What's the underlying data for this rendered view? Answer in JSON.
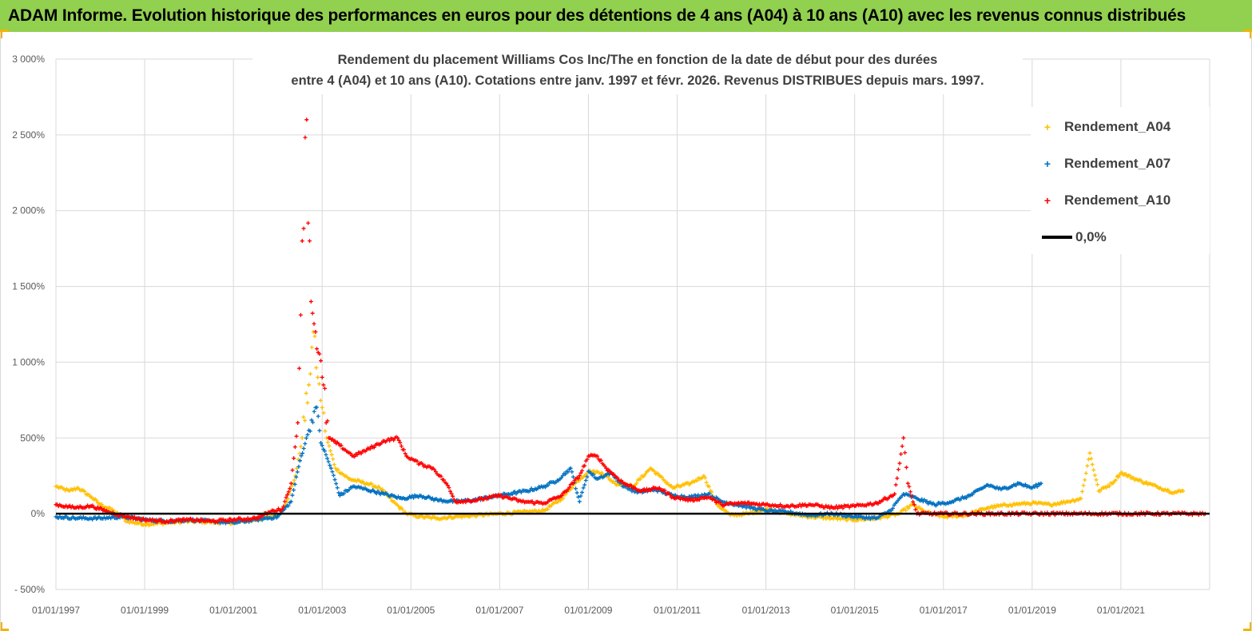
{
  "banner": {
    "title": "ADAM Informe. Evolution historique des performances en euros pour des détentions de 4 ans (A04) à 10 ans (A10) avec les revenus connus distribués"
  },
  "chart_data": {
    "type": "scatter",
    "title_line1": "Rendement du placement Williams Cos Inc/The  en fonction de la date de début pour des durées",
    "title_line2": "entre 4  (A04) et 10 ans (A10).  Cotations entre janv. 1997 et févr. 2026. Revenus  DISTRIBUES depuis mars. 1997.",
    "x_ticks": [
      "01/01/1997",
      "01/01/1999",
      "01/01/2001",
      "01/01/2003",
      "01/01/2005",
      "01/01/2007",
      "01/01/2009",
      "01/01/2011",
      "01/01/2013",
      "01/01/2015",
      "01/01/2017",
      "01/01/2019",
      "01/01/2021"
    ],
    "xlim": [
      1997.0,
      2023.0
    ],
    "y_ticks": [
      "3 000%",
      "2 500%",
      "2 000%",
      "1 500%",
      "1 000%",
      "500%",
      "0%",
      "- 500%"
    ],
    "ylim": [
      -500,
      3000
    ],
    "grid": true,
    "legend_position": "top-right",
    "series": [
      {
        "name": "Rendement_A04",
        "color": "#ffc000",
        "marker": "+",
        "points": [
          [
            1997.0,
            180
          ],
          [
            1997.3,
            150
          ],
          [
            1997.5,
            170
          ],
          [
            1997.8,
            110
          ],
          [
            1998.0,
            60
          ],
          [
            1998.3,
            20
          ],
          [
            1998.6,
            -50
          ],
          [
            1999.0,
            -70
          ],
          [
            1999.5,
            -60
          ],
          [
            2000.0,
            -50
          ],
          [
            2000.5,
            -55
          ],
          [
            2001.0,
            -60
          ],
          [
            2001.5,
            -40
          ],
          [
            2002.0,
            -10
          ],
          [
            2002.2,
            80
          ],
          [
            2002.4,
            250
          ],
          [
            2002.55,
            500
          ],
          [
            2002.7,
            850
          ],
          [
            2002.8,
            1200
          ],
          [
            2002.9,
            900
          ],
          [
            2003.0,
            700
          ],
          [
            2003.1,
            500
          ],
          [
            2003.3,
            300
          ],
          [
            2003.6,
            230
          ],
          [
            2004.0,
            200
          ],
          [
            2004.3,
            170
          ],
          [
            2004.6,
            80
          ],
          [
            2004.9,
            0
          ],
          [
            2005.2,
            -20
          ],
          [
            2005.6,
            -30
          ],
          [
            2006.0,
            -20
          ],
          [
            2006.5,
            -10
          ],
          [
            2007.0,
            0
          ],
          [
            2007.5,
            10
          ],
          [
            2008.0,
            20
          ],
          [
            2008.4,
            100
          ],
          [
            2008.7,
            200
          ],
          [
            2009.0,
            280
          ],
          [
            2009.3,
            270
          ],
          [
            2009.6,
            200
          ],
          [
            2010.0,
            180
          ],
          [
            2010.4,
            300
          ],
          [
            2010.6,
            250
          ],
          [
            2010.9,
            170
          ],
          [
            2011.3,
            200
          ],
          [
            2011.6,
            250
          ],
          [
            2011.9,
            60
          ],
          [
            2012.2,
            -10
          ],
          [
            2012.6,
            0
          ],
          [
            2013.0,
            30
          ],
          [
            2013.5,
            0
          ],
          [
            2014.0,
            -20
          ],
          [
            2014.5,
            -30
          ],
          [
            2015.0,
            -40
          ],
          [
            2015.5,
            -30
          ],
          [
            2016.0,
            0
          ],
          [
            2016.3,
            60
          ],
          [
            2016.6,
            10
          ],
          [
            2017.0,
            -20
          ],
          [
            2017.5,
            -10
          ],
          [
            2018.0,
            40
          ],
          [
            2018.5,
            60
          ],
          [
            2019.0,
            70
          ],
          [
            2019.4,
            60
          ],
          [
            2019.8,
            80
          ],
          [
            2020.1,
            100
          ],
          [
            2020.3,
            400
          ],
          [
            2020.5,
            150
          ],
          [
            2020.8,
            200
          ],
          [
            2021.0,
            270
          ],
          [
            2021.4,
            220
          ],
          [
            2021.8,
            180
          ],
          [
            2022.2,
            140
          ],
          [
            2022.4,
            150
          ]
        ]
      },
      {
        "name": "Rendement_A07",
        "color": "#0070c0",
        "marker": "+",
        "points": [
          [
            1997.0,
            -20
          ],
          [
            1997.5,
            -30
          ],
          [
            1998.0,
            -30
          ],
          [
            1998.5,
            -20
          ],
          [
            1999.0,
            -40
          ],
          [
            1999.5,
            -50
          ],
          [
            2000.0,
            -40
          ],
          [
            2000.5,
            -50
          ],
          [
            2001.0,
            -60
          ],
          [
            2001.5,
            -40
          ],
          [
            2002.0,
            -20
          ],
          [
            2002.3,
            80
          ],
          [
            2002.5,
            350
          ],
          [
            2002.7,
            550
          ],
          [
            2002.85,
            700
          ],
          [
            2003.0,
            450
          ],
          [
            2003.2,
            300
          ],
          [
            2003.4,
            120
          ],
          [
            2003.7,
            180
          ],
          [
            2004.0,
            160
          ],
          [
            2004.4,
            130
          ],
          [
            2004.8,
            100
          ],
          [
            2005.2,
            120
          ],
          [
            2005.6,
            90
          ],
          [
            2006.0,
            80
          ],
          [
            2006.4,
            90
          ],
          [
            2006.8,
            110
          ],
          [
            2007.2,
            130
          ],
          [
            2007.6,
            150
          ],
          [
            2008.0,
            180
          ],
          [
            2008.3,
            220
          ],
          [
            2008.6,
            300
          ],
          [
            2008.8,
            80
          ],
          [
            2009.0,
            280
          ],
          [
            2009.2,
            230
          ],
          [
            2009.5,
            270
          ],
          [
            2009.8,
            180
          ],
          [
            2010.1,
            140
          ],
          [
            2010.5,
            160
          ],
          [
            2010.9,
            120
          ],
          [
            2011.3,
            110
          ],
          [
            2011.7,
            130
          ],
          [
            2012.0,
            80
          ],
          [
            2012.5,
            50
          ],
          [
            2013.0,
            20
          ],
          [
            2013.5,
            10
          ],
          [
            2014.0,
            -10
          ],
          [
            2014.5,
            0
          ],
          [
            2015.0,
            -20
          ],
          [
            2015.5,
            -30
          ],
          [
            2015.8,
            20
          ],
          [
            2016.1,
            130
          ],
          [
            2016.4,
            100
          ],
          [
            2016.8,
            60
          ],
          [
            2017.2,
            80
          ],
          [
            2017.6,
            120
          ],
          [
            2018.0,
            190
          ],
          [
            2018.3,
            160
          ],
          [
            2018.7,
            200
          ],
          [
            2019.0,
            170
          ],
          [
            2019.2,
            200
          ]
        ]
      },
      {
        "name": "Rendement_A10",
        "color": "#ff0000",
        "marker": "+",
        "points": [
          [
            1997.0,
            60
          ],
          [
            1997.4,
            40
          ],
          [
            1997.8,
            50
          ],
          [
            1998.2,
            10
          ],
          [
            1998.6,
            -20
          ],
          [
            1999.0,
            -40
          ],
          [
            1999.5,
            -50
          ],
          [
            2000.0,
            -40
          ],
          [
            2000.5,
            -50
          ],
          [
            2001.0,
            -40
          ],
          [
            2001.5,
            -30
          ],
          [
            2001.9,
            20
          ],
          [
            2002.1,
            30
          ],
          [
            2002.3,
            200
          ],
          [
            2002.45,
            600
          ],
          [
            2002.55,
            1800
          ],
          [
            2002.65,
            2600
          ],
          [
            2002.75,
            1400
          ],
          [
            2002.85,
            1200
          ],
          [
            2003.0,
            900
          ],
          [
            2003.15,
            500
          ],
          [
            2003.4,
            450
          ],
          [
            2003.7,
            380
          ],
          [
            2004.0,
            420
          ],
          [
            2004.4,
            480
          ],
          [
            2004.7,
            500
          ],
          [
            2004.9,
            380
          ],
          [
            2005.2,
            330
          ],
          [
            2005.5,
            300
          ],
          [
            2005.8,
            200
          ],
          [
            2006.0,
            80
          ],
          [
            2006.5,
            90
          ],
          [
            2007.0,
            120
          ],
          [
            2007.5,
            80
          ],
          [
            2008.0,
            70
          ],
          [
            2008.4,
            120
          ],
          [
            2008.8,
            250
          ],
          [
            2009.0,
            380
          ],
          [
            2009.2,
            380
          ],
          [
            2009.4,
            300
          ],
          [
            2009.8,
            200
          ],
          [
            2010.2,
            150
          ],
          [
            2010.6,
            170
          ],
          [
            2010.9,
            110
          ],
          [
            2011.3,
            90
          ],
          [
            2011.7,
            110
          ],
          [
            2012.0,
            60
          ],
          [
            2012.5,
            70
          ],
          [
            2013.0,
            60
          ],
          [
            2013.5,
            50
          ],
          [
            2014.0,
            60
          ],
          [
            2014.5,
            40
          ],
          [
            2015.0,
            50
          ],
          [
            2015.5,
            70
          ],
          [
            2015.9,
            130
          ],
          [
            2016.1,
            500
          ],
          [
            2016.2,
            200
          ],
          [
            2016.4,
            0
          ],
          [
            2017.0,
            0
          ],
          [
            2018.0,
            0
          ],
          [
            2019.0,
            0
          ],
          [
            2020.0,
            0
          ],
          [
            2021.0,
            0
          ],
          [
            2022.0,
            0
          ],
          [
            2022.9,
            0
          ]
        ]
      }
    ],
    "reference_line": {
      "name": "0,0%",
      "color": "#000000",
      "y": 0
    }
  }
}
